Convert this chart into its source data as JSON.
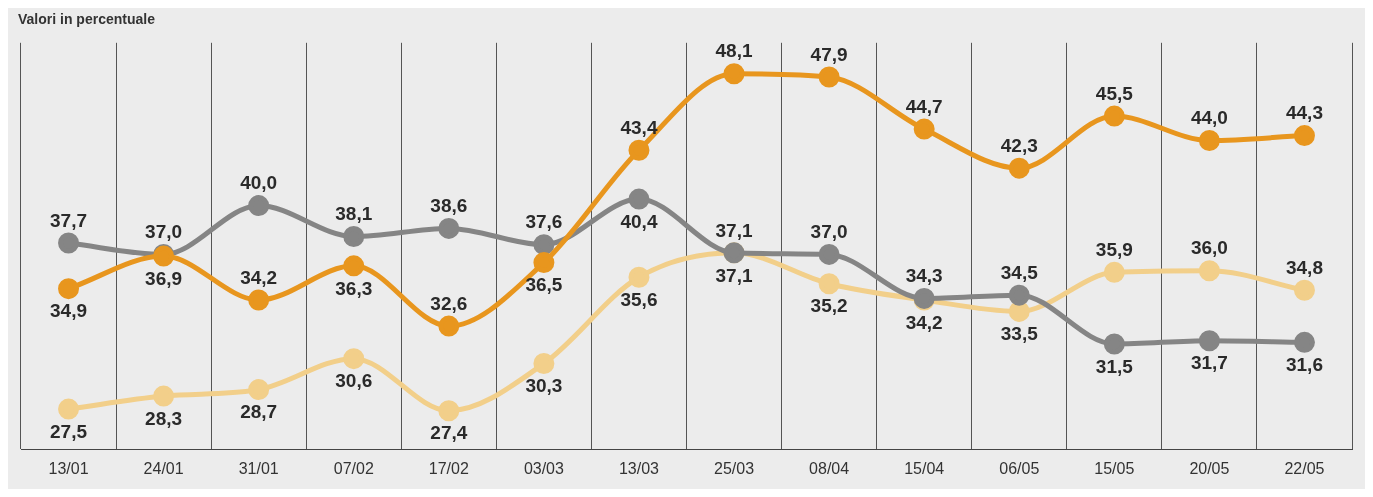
{
  "chart_data": {
    "type": "line",
    "title": "Valori in percentuale",
    "categories": [
      "13/01",
      "24/01",
      "31/01",
      "07/02",
      "17/02",
      "03/03",
      "13/03",
      "25/03",
      "08/04",
      "15/04",
      "06/05",
      "15/05",
      "20/05",
      "22/05"
    ],
    "series": [
      {
        "color": "#e8961e",
        "values": [
          34.9,
          36.9,
          34.2,
          36.3,
          32.6,
          36.5,
          43.4,
          48.1,
          47.9,
          44.7,
          42.3,
          45.5,
          44.0,
          44.3
        ],
        "value_labels": [
          "34,9",
          "36,9",
          "34,2",
          "36,3",
          "32,6",
          "36,5",
          "43,4",
          "48,1",
          "47,9",
          "44,7",
          "42,3",
          "45,5",
          "44,0",
          "44,3"
        ]
      },
      {
        "color": "#858585",
        "values": [
          37.7,
          37.0,
          40.0,
          38.1,
          38.6,
          37.6,
          40.4,
          37.1,
          37.0,
          34.3,
          34.5,
          31.5,
          31.7,
          31.6
        ],
        "value_labels": [
          "37,7",
          "37,0",
          "40,0",
          "38,1",
          "38,6",
          "37,6",
          "40,4",
          "37,1",
          "37,0",
          "34,3",
          "34,5",
          "31,5",
          "31,7",
          "31,6"
        ]
      },
      {
        "color": "#f2cf8a",
        "values": [
          27.5,
          28.3,
          28.7,
          30.6,
          27.4,
          30.3,
          35.6,
          37.1,
          35.2,
          34.2,
          33.5,
          35.9,
          36.0,
          34.8
        ],
        "value_labels": [
          "27,5",
          "28,3",
          "28,7",
          "30,6",
          "27,4",
          "30,3",
          "35,6",
          "37,1",
          "35,2",
          "34,2",
          "33,5",
          "35,9",
          "36,0",
          "34,8"
        ]
      }
    ],
    "grid": "x",
    "marker": "circle",
    "line_style": "solid",
    "legend": false
  }
}
